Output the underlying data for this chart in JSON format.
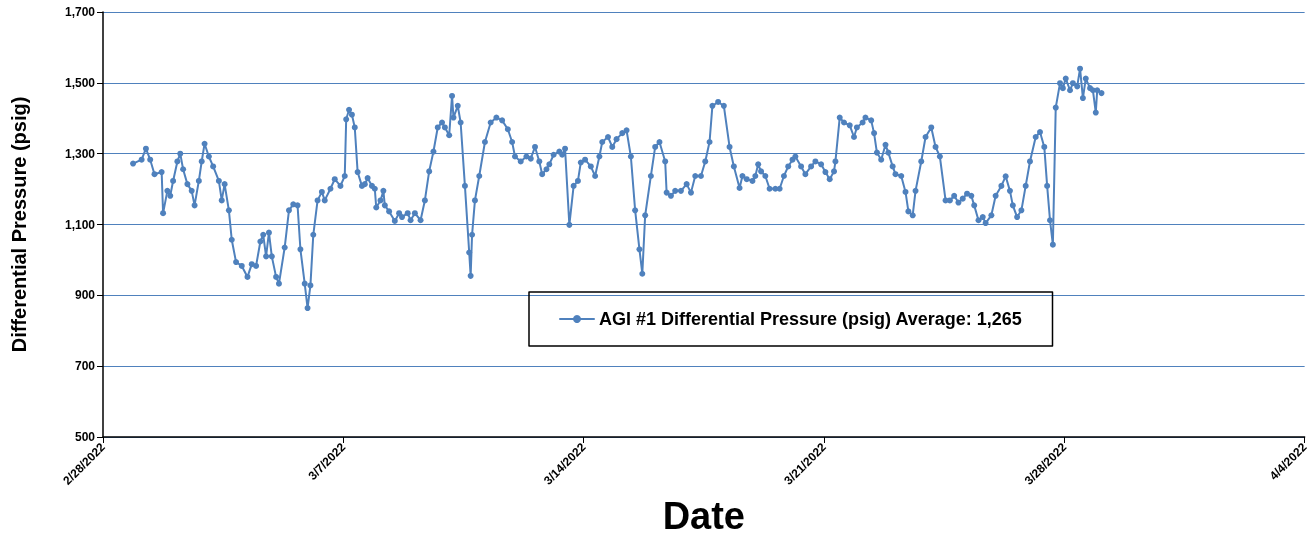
{
  "chart_data": {
    "type": "line",
    "xlabel": "Date",
    "ylabel": "Differential Pressure (psig)",
    "xlim": [
      "2022-02-28",
      "2022-04-04"
    ],
    "xticks": [
      {
        "value": "2022-02-28",
        "label": "2/28/2022"
      },
      {
        "value": "2022-03-07",
        "label": "3/7/2022"
      },
      {
        "value": "2022-03-14",
        "label": "3/14/2022"
      },
      {
        "value": "2022-03-21",
        "label": "3/21/2022"
      },
      {
        "value": "2022-03-28",
        "label": "3/28/2022"
      },
      {
        "value": "2022-04-04",
        "label": "4/4/2022"
      }
    ],
    "ylim": [
      500,
      1700
    ],
    "yticks": [
      500,
      700,
      900,
      {
        "value": 1100,
        "label": "1,100"
      },
      {
        "value": 1300,
        "label": "1,300"
      },
      {
        "value": 1500,
        "label": "1,500"
      },
      {
        "value": 1700,
        "label": "1,700"
      }
    ],
    "grid": "y",
    "legend": "bottom",
    "marker": "circle",
    "line_style": "solid",
    "series": [
      {
        "name": "AGI #1 Differential Pressure (psig) Average: 1,265",
        "color": "#4f81bd",
        "x": [
          "2022-02-28T21:00",
          "2022-03-01T03:00",
          "2022-03-01T06:00",
          "2022-03-01T09:00",
          "2022-03-01T12:00",
          "2022-03-01T17:00",
          "2022-03-01T18:00",
          "2022-03-01T21:00",
          "2022-03-01T23:00",
          "2022-03-02T01:00",
          "2022-03-02T04:00",
          "2022-03-02T06:00",
          "2022-03-02T08:00",
          "2022-03-02T11:00",
          "2022-03-02T14:00",
          "2022-03-02T16:00",
          "2022-03-02T19:00",
          "2022-03-02T21:00",
          "2022-03-02T23:00",
          "2022-03-03T02:00",
          "2022-03-03T05:00",
          "2022-03-03T09:00",
          "2022-03-03T11:00",
          "2022-03-03T13:00",
          "2022-03-03T16:00",
          "2022-03-03T18:00",
          "2022-03-03T21:00",
          "2022-03-04T01:00",
          "2022-03-04T05:00",
          "2022-03-04T08:00",
          "2022-03-04T11:00",
          "2022-03-04T14:00",
          "2022-03-04T16:00",
          "2022-03-04T18:00",
          "2022-03-04T20:00",
          "2022-03-04T22:00",
          "2022-03-05T01:00",
          "2022-03-05T03:00",
          "2022-03-05T07:00",
          "2022-03-05T10:00",
          "2022-03-05T13:00",
          "2022-03-05T16:00",
          "2022-03-05T18:00",
          "2022-03-05T21:00",
          "2022-03-05T23:00",
          "2022-03-06T01:00",
          "2022-03-06T03:00",
          "2022-03-06T06:00",
          "2022-03-06T09:00",
          "2022-03-06T11:00",
          "2022-03-06T15:00",
          "2022-03-06T18:00",
          "2022-03-06T22:00",
          "2022-03-07T01:00",
          "2022-03-07T02:00",
          "2022-03-07T04:00",
          "2022-03-07T06:00",
          "2022-03-07T08:00",
          "2022-03-07T10:00",
          "2022-03-07T13:00",
          "2022-03-07T15:00",
          "2022-03-07T17:00",
          "2022-03-07T20:00",
          "2022-03-07T22:00",
          "2022-03-07T23:00",
          "2022-03-08T02:00",
          "2022-03-08T04:00",
          "2022-03-08T05:00",
          "2022-03-08T08:00",
          "2022-03-08T12:00",
          "2022-03-08T15:00",
          "2022-03-08T17:00",
          "2022-03-08T21:00",
          "2022-03-08T23:00",
          "2022-03-09T02:00",
          "2022-03-09T06:00",
          "2022-03-09T09:00",
          "2022-03-09T12:00",
          "2022-03-09T15:00",
          "2022-03-09T18:00",
          "2022-03-09T21:00",
          "2022-03-09T23:00",
          "2022-03-10T02:00",
          "2022-03-10T04:00",
          "2022-03-10T05:00",
          "2022-03-10T08:00",
          "2022-03-10T10:00",
          "2022-03-10T13:00",
          "2022-03-10T16:00",
          "2022-03-10T17:00",
          "2022-03-10T18:00",
          "2022-03-10T20:00",
          "2022-03-10T23:00",
          "2022-03-11T03:00",
          "2022-03-11T07:00",
          "2022-03-11T11:00",
          "2022-03-11T15:00",
          "2022-03-11T19:00",
          "2022-03-11T22:00",
          "2022-03-12T00:00",
          "2022-03-12T04:00",
          "2022-03-12T08:00",
          "2022-03-12T11:00",
          "2022-03-12T14:00",
          "2022-03-12T17:00",
          "2022-03-12T19:00",
          "2022-03-12T22:00",
          "2022-03-13T00:00",
          "2022-03-13T03:00",
          "2022-03-13T07:00",
          "2022-03-13T09:00",
          "2022-03-13T11:00",
          "2022-03-13T14:00",
          "2022-03-13T17:00",
          "2022-03-13T20:00",
          "2022-03-13T22:00",
          "2022-03-14T01:00",
          "2022-03-14T05:00",
          "2022-03-14T08:00",
          "2022-03-14T11:00",
          "2022-03-14T13:00",
          "2022-03-14T17:00",
          "2022-03-14T20:00",
          "2022-03-14T23:00",
          "2022-03-15T03:00",
          "2022-03-15T06:00",
          "2022-03-15T09:00",
          "2022-03-15T12:00",
          "2022-03-15T15:00",
          "2022-03-15T17:00",
          "2022-03-15T19:00",
          "2022-03-15T23:00",
          "2022-03-16T02:00",
          "2022-03-16T05:00",
          "2022-03-16T09:00",
          "2022-03-16T10:00",
          "2022-03-16T13:00",
          "2022-03-16T16:00",
          "2022-03-16T20:00",
          "2022-03-17T00:00",
          "2022-03-17T03:00",
          "2022-03-17T06:00",
          "2022-03-17T10:00",
          "2022-03-17T13:00",
          "2022-03-17T16:00",
          "2022-03-17T18:00",
          "2022-03-17T22:00",
          "2022-03-18T02:00",
          "2022-03-18T06:00",
          "2022-03-18T09:00",
          "2022-03-18T13:00",
          "2022-03-18T15:00",
          "2022-03-18T18:00",
          "2022-03-18T22:00",
          "2022-03-19T00:00",
          "2022-03-19T02:00",
          "2022-03-19T04:00",
          "2022-03-19T07:00",
          "2022-03-19T10:00",
          "2022-03-19T14:00",
          "2022-03-19T17:00",
          "2022-03-19T20:00",
          "2022-03-19T23:00",
          "2022-03-20T02:00",
          "2022-03-20T04:00",
          "2022-03-20T08:00",
          "2022-03-20T11:00",
          "2022-03-20T15:00",
          "2022-03-20T18:00",
          "2022-03-20T22:00",
          "2022-03-21T01:00",
          "2022-03-21T04:00",
          "2022-03-21T07:00",
          "2022-03-21T08:00",
          "2022-03-21T11:00",
          "2022-03-21T14:00",
          "2022-03-21T18:00",
          "2022-03-21T21:00",
          "2022-03-21T23:00",
          "2022-03-22T03:00",
          "2022-03-22T05:00",
          "2022-03-22T09:00",
          "2022-03-22T11:00",
          "2022-03-22T13:00",
          "2022-03-22T16:00",
          "2022-03-22T19:00",
          "2022-03-22T21:00",
          "2022-03-23T00:00",
          "2022-03-23T02:00",
          "2022-03-23T06:00",
          "2022-03-23T09:00",
          "2022-03-23T11:00",
          "2022-03-23T14:00",
          "2022-03-23T16:00",
          "2022-03-23T20:00",
          "2022-03-23T23:00",
          "2022-03-24T03:00",
          "2022-03-24T06:00",
          "2022-03-24T09:00",
          "2022-03-24T13:00",
          "2022-03-24T16:00",
          "2022-03-24T19:00",
          "2022-03-24T22:00",
          "2022-03-25T01:00",
          "2022-03-25T04:00",
          "2022-03-25T07:00",
          "2022-03-25T09:00",
          "2022-03-25T12:00",
          "2022-03-25T15:00",
          "2022-03-25T17:00",
          "2022-03-25T21:00",
          "2022-03-26T00:00",
          "2022-03-26T04:00",
          "2022-03-26T07:00",
          "2022-03-26T10:00",
          "2022-03-26T12:00",
          "2022-03-26T15:00",
          "2022-03-26T18:00",
          "2022-03-26T21:00",
          "2022-03-27T00:00",
          "2022-03-27T04:00",
          "2022-03-27T07:00",
          "2022-03-27T10:00",
          "2022-03-27T12:00",
          "2022-03-27T14:00",
          "2022-03-27T16:00",
          "2022-03-27T18:00",
          "2022-03-27T21:00",
          "2022-03-27T23:00",
          "2022-03-28T01:00",
          "2022-03-28T04:00",
          "2022-03-28T06:00",
          "2022-03-28T09:00",
          "2022-03-28T11:00",
          "2022-03-28T13:00",
          "2022-03-28T15:00",
          "2022-03-28T18:00",
          "2022-03-28T20:00",
          "2022-03-28T22:00",
          "2022-03-28T23:00",
          "2022-03-29T02:00"
        ],
        "values": [
          1272,
          1283,
          1314,
          1283,
          1242,
          1248,
          1132,
          1195,
          1181,
          1223,
          1278,
          1300,
          1256,
          1214,
          1195,
          1154,
          1223,
          1278,
          1328,
          1292,
          1264,
          1223,
          1168,
          1214,
          1140,
          1057,
          994,
          983,
          952,
          988,
          983,
          1052,
          1071,
          1010,
          1077,
          1010,
          952,
          933,
          1035,
          1140,
          1157,
          1154,
          1030,
          933,
          864,
          928,
          1071,
          1168,
          1192,
          1168,
          1201,
          1228,
          1209,
          1237,
          1397,
          1424,
          1410,
          1374,
          1248,
          1209,
          1214,
          1231,
          1209,
          1201,
          1148,
          1168,
          1195,
          1154,
          1137,
          1110,
          1132,
          1121,
          1132,
          1112,
          1132,
          1112,
          1168,
          1250,
          1306,
          1374,
          1388,
          1374,
          1352,
          1463,
          1402,
          1435,
          1388,
          1209,
          1021,
          955,
          1071,
          1168,
          1237,
          1333,
          1388,
          1402,
          1394,
          1369,
          1333,
          1292,
          1278,
          1292,
          1286,
          1319,
          1278,
          1242,
          1256,
          1270,
          1297,
          1306,
          1297,
          1314,
          1099,
          1209,
          1223,
          1275,
          1283,
          1264,
          1237,
          1292,
          1333,
          1347,
          1319,
          1341,
          1358,
          1366,
          1292,
          1140,
          1030,
          961,
          1126,
          1237,
          1319,
          1333,
          1278,
          1190,
          1181,
          1195,
          1195,
          1214,
          1190,
          1237,
          1237,
          1278,
          1333,
          1435,
          1446,
          1435,
          1319,
          1264,
          1203,
          1237,
          1228,
          1223,
          1237,
          1270,
          1250,
          1237,
          1201,
          1201,
          1201,
          1237,
          1264,
          1283,
          1292,
          1264,
          1242,
          1264,
          1278,
          1270,
          1248,
          1228,
          1250,
          1278,
          1402,
          1388,
          1380,
          1347,
          1374,
          1388,
          1402,
          1394,
          1358,
          1303,
          1283,
          1325,
          1303,
          1264,
          1242,
          1237,
          1192,
          1137,
          1126,
          1195,
          1278,
          1347,
          1374,
          1319,
          1292,
          1168,
          1168,
          1181,
          1162,
          1173,
          1187,
          1181,
          1154,
          1112,
          1121,
          1104,
          1126,
          1181,
          1209,
          1236,
          1195,
          1154,
          1121,
          1140,
          1209,
          1278,
          1347,
          1361,
          1319,
          1209,
          1112,
          1043,
          1430,
          1499,
          1485,
          1512,
          1479,
          1499,
          1490,
          1540,
          1457,
          1512,
          1485,
          1479,
          1416,
          1479,
          1471
        ]
      }
    ]
  }
}
